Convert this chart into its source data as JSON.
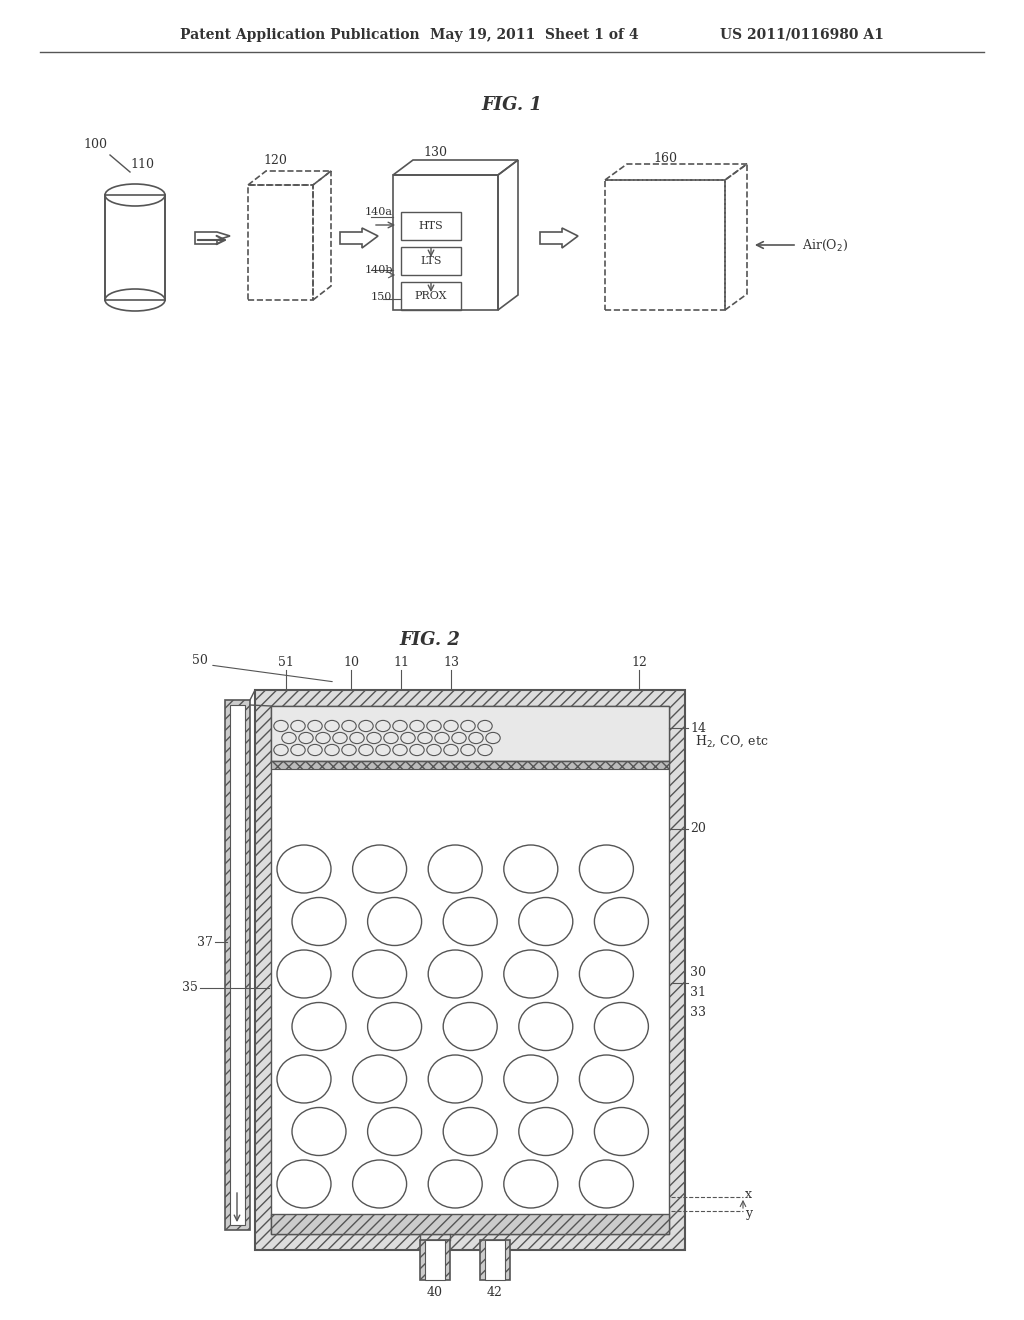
{
  "bg_color": "#ffffff",
  "header_text": "Patent Application Publication",
  "header_date": "May 19, 2011  Sheet 1 of 4",
  "header_patent": "US 2011/0116980 A1",
  "fig1_title": "FIG. 1",
  "fig2_title": "FIG. 2",
  "line_color": "#555555",
  "text_color": "#333333"
}
